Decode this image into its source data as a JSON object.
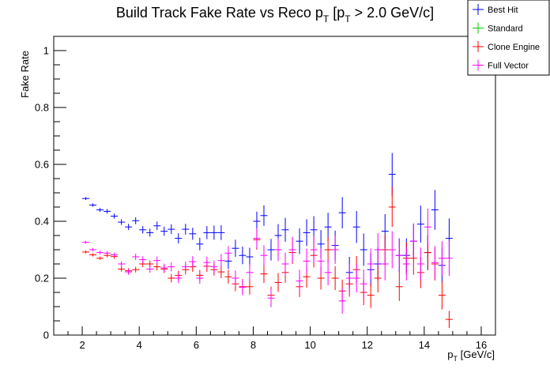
{
  "chart_data": {
    "type": "scatter",
    "title_main": "Build Track Fake Rate vs Reco p",
    "title_sub1": "T",
    "title_mid": " [p",
    "title_sub2": "T",
    "title_end": " > 2.0 GeV/c]",
    "ylabel": "Fake Rate",
    "xlabel_main": "p",
    "xlabel_sub": "T",
    "xlabel_unit": " [GeV/c]",
    "xlim": [
      1,
      16.5
    ],
    "ylim": [
      0,
      1.05
    ],
    "x_ticks": [
      2,
      4,
      6,
      8,
      10,
      12,
      14,
      16
    ],
    "y_ticks": [
      "0",
      "0.2",
      "0.4",
      "0.6",
      "0.8",
      "1"
    ],
    "y_tick_values": [
      0,
      0.2,
      0.4,
      0.6,
      0.8,
      1.0
    ],
    "bin_half_width": 0.125,
    "legend_position": "top-right",
    "series": [
      {
        "name": "Best Hit",
        "color": "#0000ff",
        "points": [
          [
            2.125,
            0.48,
            0.005
          ],
          [
            2.375,
            0.457,
            0.006
          ],
          [
            2.625,
            0.44,
            0.007
          ],
          [
            2.875,
            0.435,
            0.008
          ],
          [
            3.125,
            0.418,
            0.009
          ],
          [
            3.375,
            0.397,
            0.01
          ],
          [
            3.625,
            0.38,
            0.011
          ],
          [
            3.875,
            0.402,
            0.012
          ],
          [
            4.125,
            0.37,
            0.013
          ],
          [
            4.375,
            0.36,
            0.014
          ],
          [
            4.625,
            0.384,
            0.015
          ],
          [
            4.875,
            0.365,
            0.016
          ],
          [
            5.125,
            0.372,
            0.017
          ],
          [
            5.375,
            0.34,
            0.018
          ],
          [
            5.625,
            0.372,
            0.019
          ],
          [
            5.875,
            0.356,
            0.021
          ],
          [
            6.125,
            0.32,
            0.022
          ],
          [
            6.375,
            0.36,
            0.023
          ],
          [
            6.625,
            0.36,
            0.025
          ],
          [
            6.875,
            0.36,
            0.026
          ],
          [
            7.125,
            0.26,
            0.028
          ],
          [
            7.375,
            0.305,
            0.03
          ],
          [
            7.625,
            0.28,
            0.031
          ],
          [
            7.875,
            0.275,
            0.032
          ],
          [
            8.125,
            0.4,
            0.034
          ],
          [
            8.375,
            0.42,
            0.036
          ],
          [
            8.625,
            0.3,
            0.038
          ],
          [
            8.875,
            0.35,
            0.04
          ],
          [
            9.125,
            0.37,
            0.042
          ],
          [
            9.375,
            0.3,
            0.043
          ],
          [
            9.625,
            0.33,
            0.045
          ],
          [
            9.875,
            0.36,
            0.047
          ],
          [
            10.125,
            0.37,
            0.048
          ],
          [
            10.375,
            0.32,
            0.049
          ],
          [
            10.625,
            0.38,
            0.05
          ],
          [
            10.875,
            0.315,
            0.052
          ],
          [
            11.125,
            0.43,
            0.055
          ],
          [
            11.375,
            0.22,
            0.055
          ],
          [
            11.625,
            0.38,
            0.056
          ],
          [
            11.875,
            0.3,
            0.057
          ],
          [
            12.125,
            0.23,
            0.058
          ],
          [
            12.375,
            0.25,
            0.058
          ],
          [
            12.625,
            0.365,
            0.06
          ],
          [
            12.875,
            0.565,
            0.075
          ],
          [
            13.125,
            0.28,
            0.06
          ],
          [
            13.375,
            0.28,
            0.06
          ],
          [
            13.625,
            0.33,
            0.062
          ],
          [
            13.875,
            0.39,
            0.065
          ],
          [
            14.125,
            0.29,
            0.062
          ],
          [
            14.375,
            0.44,
            0.07
          ],
          [
            14.625,
            0.245,
            0.062
          ],
          [
            14.875,
            0.34,
            0.07
          ]
        ]
      },
      {
        "name": "Standard",
        "color": "#00cc00",
        "points": []
      },
      {
        "name": "Clone Engine",
        "color": "#ff0000",
        "points": [
          [
            2.125,
            0.292,
            0.005
          ],
          [
            2.375,
            0.282,
            0.006
          ],
          [
            2.625,
            0.27,
            0.006
          ],
          [
            2.875,
            0.28,
            0.007
          ],
          [
            3.125,
            0.276,
            0.008
          ],
          [
            3.375,
            0.232,
            0.009
          ],
          [
            3.625,
            0.226,
            0.009
          ],
          [
            3.875,
            0.23,
            0.01
          ],
          [
            4.125,
            0.25,
            0.011
          ],
          [
            4.375,
            0.25,
            0.012
          ],
          [
            4.625,
            0.24,
            0.013
          ],
          [
            4.875,
            0.232,
            0.014
          ],
          [
            5.125,
            0.2,
            0.015
          ],
          [
            5.375,
            0.21,
            0.016
          ],
          [
            5.625,
            0.23,
            0.017
          ],
          [
            5.875,
            0.24,
            0.018
          ],
          [
            6.125,
            0.21,
            0.019
          ],
          [
            6.375,
            0.242,
            0.02
          ],
          [
            6.625,
            0.23,
            0.021
          ],
          [
            6.875,
            0.222,
            0.022
          ],
          [
            7.125,
            0.205,
            0.024
          ],
          [
            7.375,
            0.18,
            0.026
          ],
          [
            7.625,
            0.17,
            0.027
          ],
          [
            7.875,
            0.17,
            0.028
          ],
          [
            8.125,
            0.335,
            0.035
          ],
          [
            8.375,
            0.215,
            0.032
          ],
          [
            8.625,
            0.14,
            0.03
          ],
          [
            8.875,
            0.185,
            0.033
          ],
          [
            9.125,
            0.22,
            0.036
          ],
          [
            9.375,
            0.29,
            0.04
          ],
          [
            9.625,
            0.17,
            0.036
          ],
          [
            9.875,
            0.205,
            0.038
          ],
          [
            10.125,
            0.28,
            0.042
          ],
          [
            10.375,
            0.2,
            0.04
          ],
          [
            10.625,
            0.3,
            0.045
          ],
          [
            10.875,
            0.2,
            0.042
          ],
          [
            11.125,
            0.155,
            0.04
          ],
          [
            11.375,
            0.18,
            0.045
          ],
          [
            11.625,
            0.23,
            0.048
          ],
          [
            11.875,
            0.15,
            0.045
          ],
          [
            12.125,
            0.14,
            0.045
          ],
          [
            12.375,
            0.2,
            0.05
          ],
          [
            12.625,
            0.3,
            0.055
          ],
          [
            12.875,
            0.45,
            0.07
          ],
          [
            13.125,
            0.17,
            0.05
          ],
          [
            13.375,
            0.27,
            0.058
          ],
          [
            13.625,
            0.27,
            0.058
          ],
          [
            13.875,
            0.22,
            0.055
          ],
          [
            14.125,
            0.29,
            0.06
          ],
          [
            14.375,
            0.25,
            0.058
          ],
          [
            14.625,
            0.14,
            0.05
          ],
          [
            14.875,
            0.055,
            0.03
          ]
        ]
      },
      {
        "name": "Full Vector",
        "color": "#ff00ff",
        "points": [
          [
            2.125,
            0.326,
            0.005
          ],
          [
            2.375,
            0.3,
            0.006
          ],
          [
            2.625,
            0.29,
            0.007
          ],
          [
            2.875,
            0.288,
            0.007
          ],
          [
            3.125,
            0.282,
            0.008
          ],
          [
            3.375,
            0.25,
            0.009
          ],
          [
            3.625,
            0.222,
            0.01
          ],
          [
            3.875,
            0.275,
            0.011
          ],
          [
            4.125,
            0.265,
            0.012
          ],
          [
            4.375,
            0.232,
            0.013
          ],
          [
            4.625,
            0.262,
            0.014
          ],
          [
            4.875,
            0.236,
            0.015
          ],
          [
            5.125,
            0.24,
            0.016
          ],
          [
            5.375,
            0.2,
            0.017
          ],
          [
            5.625,
            0.24,
            0.018
          ],
          [
            5.875,
            0.258,
            0.019
          ],
          [
            6.125,
            0.2,
            0.02
          ],
          [
            6.375,
            0.255,
            0.021
          ],
          [
            6.625,
            0.24,
            0.022
          ],
          [
            6.875,
            0.262,
            0.023
          ],
          [
            7.125,
            0.288,
            0.025
          ],
          [
            7.375,
            0.2,
            0.027
          ],
          [
            7.625,
            0.168,
            0.028
          ],
          [
            7.875,
            0.22,
            0.03
          ],
          [
            8.125,
            0.34,
            0.036
          ],
          [
            8.375,
            0.28,
            0.036
          ],
          [
            8.625,
            0.13,
            0.032
          ],
          [
            8.875,
            0.3,
            0.04
          ],
          [
            9.125,
            0.25,
            0.04
          ],
          [
            9.375,
            0.3,
            0.045
          ],
          [
            9.625,
            0.19,
            0.04
          ],
          [
            9.875,
            0.26,
            0.044
          ],
          [
            10.125,
            0.3,
            0.047
          ],
          [
            10.375,
            0.26,
            0.046
          ],
          [
            10.625,
            0.22,
            0.045
          ],
          [
            10.875,
            0.3,
            0.05
          ],
          [
            11.125,
            0.12,
            0.045
          ],
          [
            11.375,
            0.2,
            0.05
          ],
          [
            11.625,
            0.2,
            0.05
          ],
          [
            11.875,
            0.18,
            0.05
          ],
          [
            12.125,
            0.25,
            0.055
          ],
          [
            12.375,
            0.3,
            0.058
          ],
          [
            12.625,
            0.25,
            0.058
          ],
          [
            12.875,
            0.3,
            0.065
          ],
          [
            13.125,
            0.28,
            0.06
          ],
          [
            13.375,
            0.25,
            0.058
          ],
          [
            13.625,
            0.33,
            0.062
          ],
          [
            13.875,
            0.25,
            0.058
          ],
          [
            14.125,
            0.38,
            0.065
          ],
          [
            14.375,
            0.255,
            0.058
          ],
          [
            14.625,
            0.27,
            0.06
          ],
          [
            14.875,
            0.27,
            0.062
          ]
        ]
      }
    ]
  }
}
